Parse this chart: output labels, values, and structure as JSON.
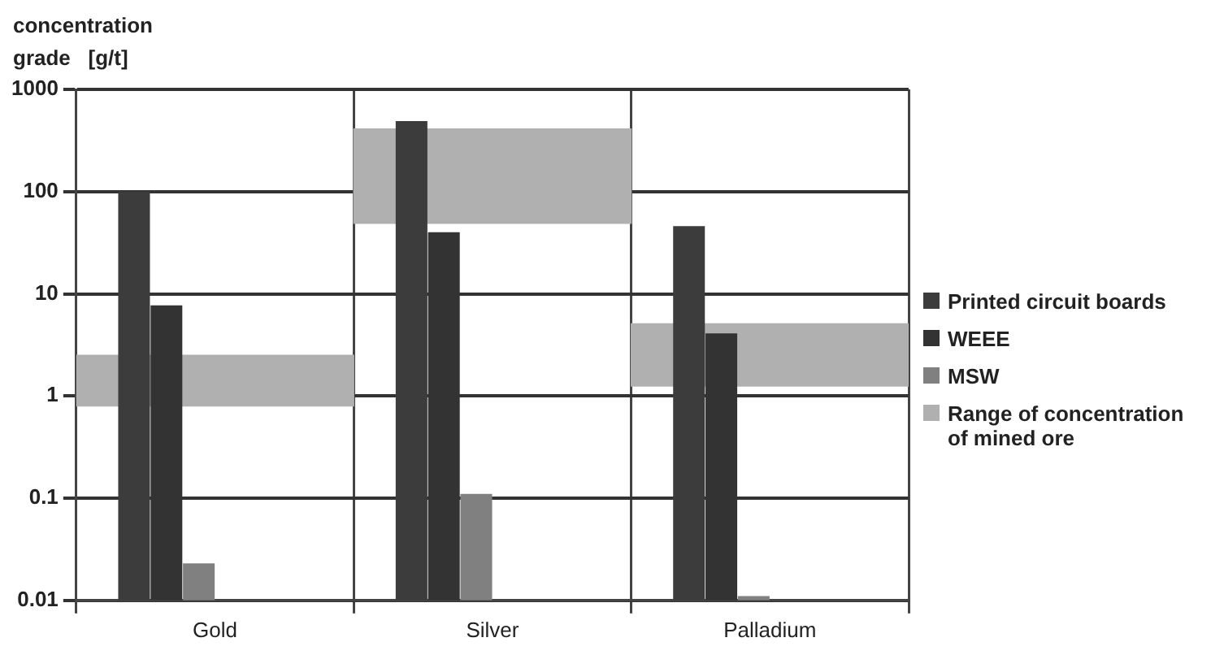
{
  "chart_data": {
    "type": "bar",
    "ylabel": "concentration grade [g/t]",
    "categories": [
      "Gold",
      "Silver",
      "Palladium"
    ],
    "series": [
      {
        "name": "Printed circuit boards",
        "color": "#3c3c3c",
        "values": [
          100,
          490,
          46
        ]
      },
      {
        "name": "WEEE",
        "color": "#333333",
        "values": [
          7.7,
          40,
          4.1
        ]
      },
      {
        "name": "MSW",
        "color": "#808080",
        "values": [
          0.023,
          0.11,
          0.011
        ]
      },
      {
        "name": "Range of concentration of mined ore",
        "type": "bar",
        "color": "#b0b0b0",
        "base": [
          0.8,
          49,
          1.25
        ],
        "values": [
          1.7,
          361,
          3.85
        ]
      }
    ],
    "log": true,
    "ylim": [
      0.01,
      1000
    ],
    "yticks": [
      0.01,
      0.1,
      1,
      10,
      100,
      1000
    ],
    "grid": true,
    "legend": "right"
  }
}
